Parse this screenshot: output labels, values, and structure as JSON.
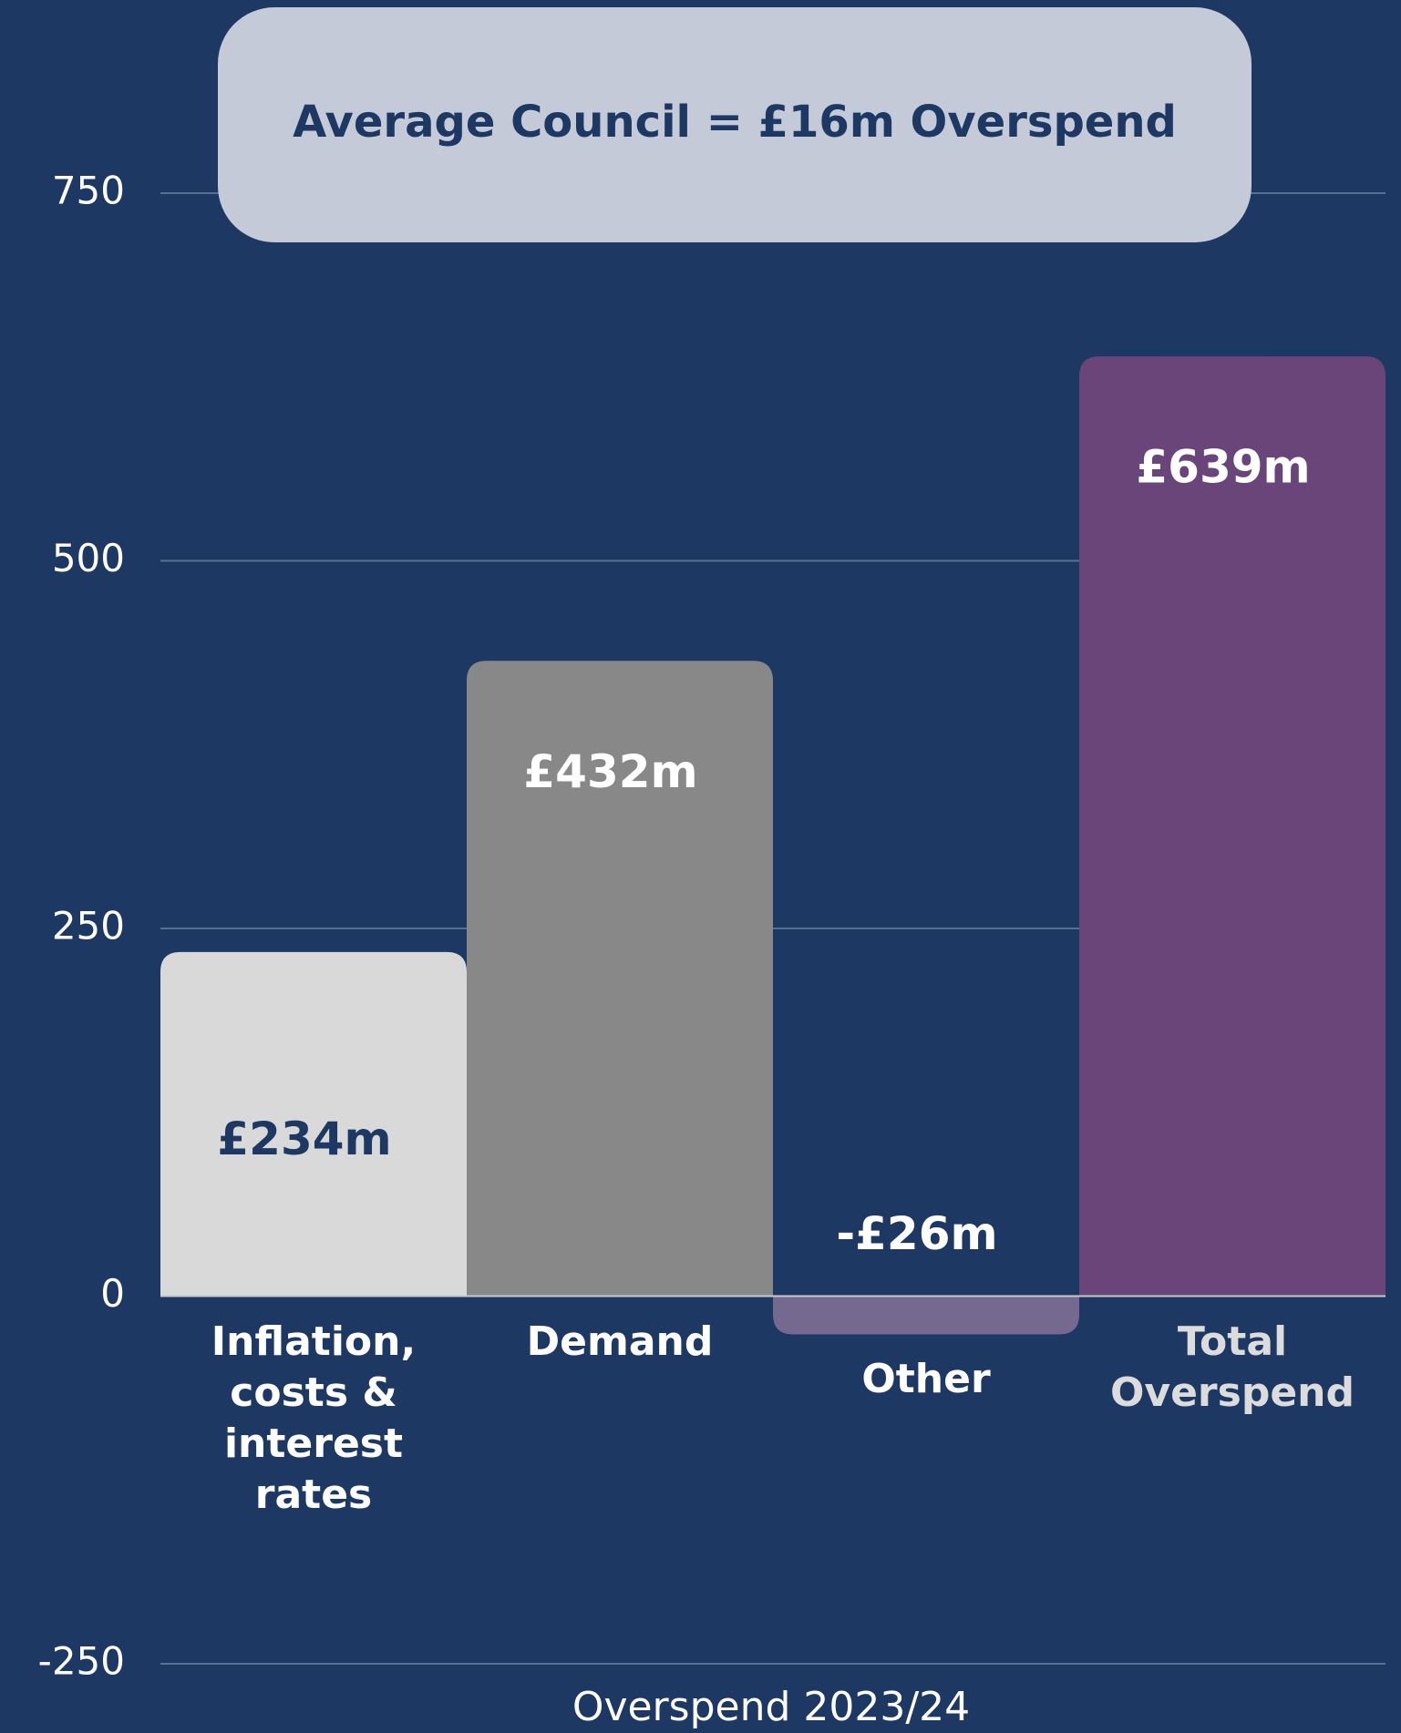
{
  "chart_data": {
    "type": "bar",
    "annotation": "Average Council = £16m Overspend",
    "x_label": "Overspend 2023/24",
    "categories": [
      "Inflation, costs & interest rates",
      "Demand",
      "Other",
      "Total Overspend"
    ],
    "values": [
      234,
      432,
      -26,
      639
    ],
    "value_labels": [
      "£234m",
      "£432m",
      "-£26m",
      "£639m"
    ],
    "colors": [
      "#d9d9d9",
      "#888888",
      "#76698f",
      "#69457a"
    ],
    "ylim": [
      -250,
      750
    ],
    "yticks": [
      -250,
      0,
      250,
      500,
      750
    ],
    "grid": true
  }
}
